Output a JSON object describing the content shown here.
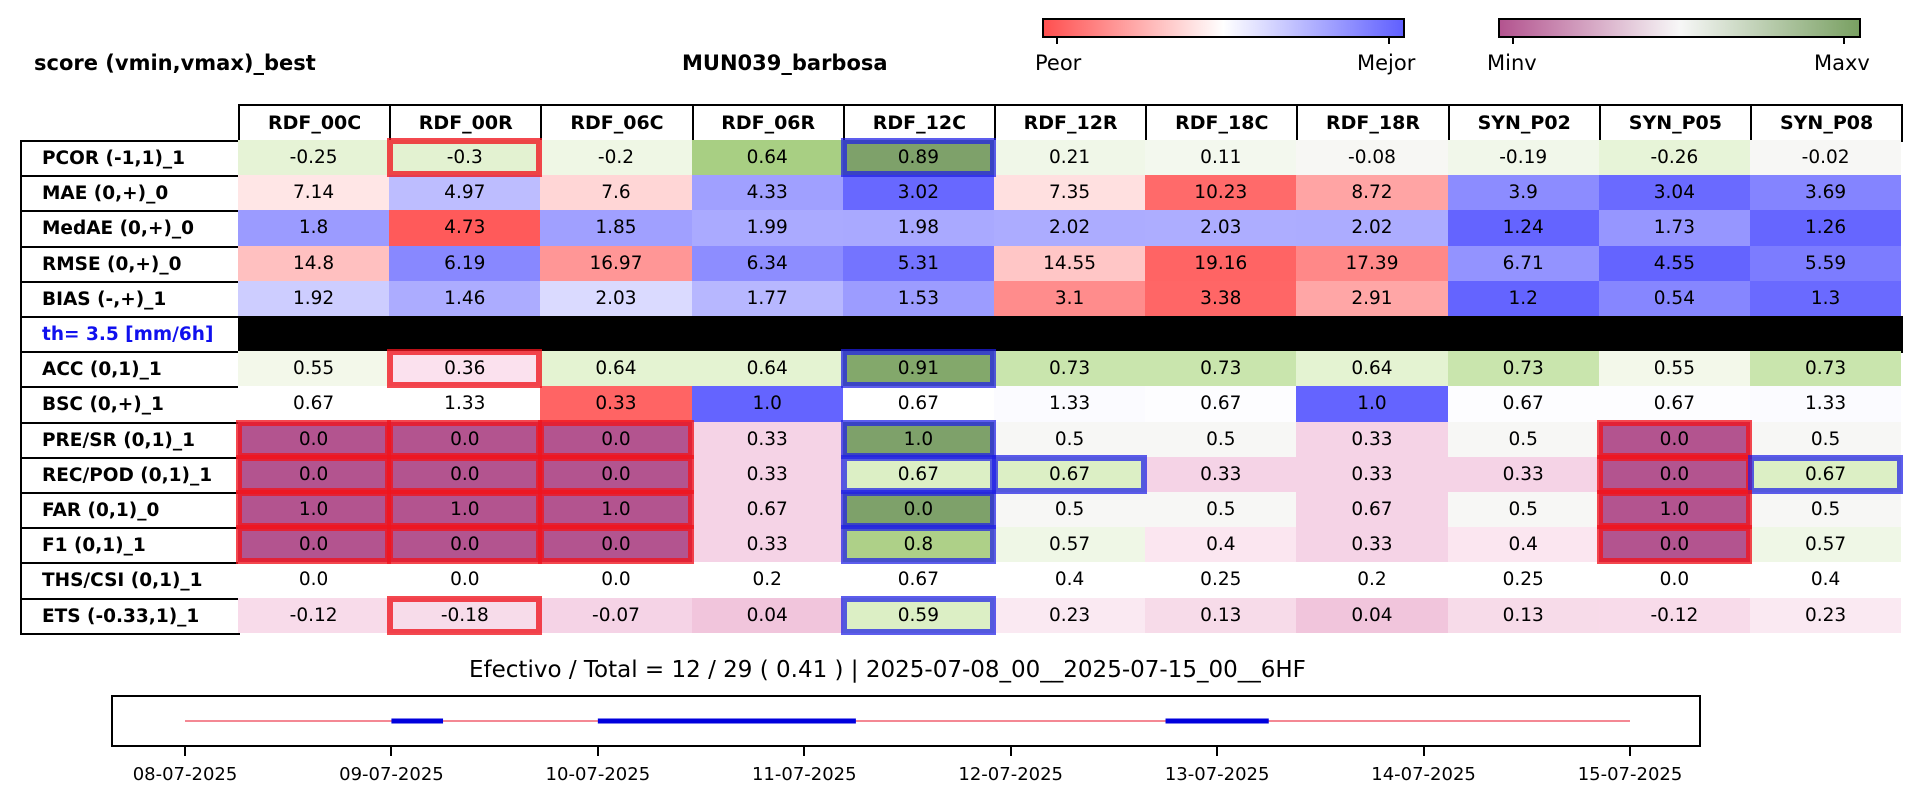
{
  "header": {
    "left_title": "score (vmin,vmax)_best",
    "center_title": "MUN039_barbosa"
  },
  "colorbars": [
    {
      "name": "score-colorbar",
      "low_label": "Peor",
      "high_label": "Mejor",
      "colors": [
        "#ff5050",
        "#ffffff",
        "#6060ff"
      ]
    },
    {
      "name": "value-colorbar",
      "low_label": "Minv",
      "high_label": "Maxv",
      "colors": [
        "#b3548f",
        "#f7f7f7",
        "#79a062"
      ]
    }
  ],
  "chart_data": {
    "type": "table",
    "columns": [
      "RDF_00C",
      "RDF_00R",
      "RDF_06C",
      "RDF_06R",
      "RDF_12C",
      "RDF_12R",
      "RDF_18C",
      "RDF_18R",
      "SYN_P02",
      "SYN_P05",
      "SYN_P08"
    ],
    "rows": [
      {
        "label": "PCOR (-1,1)_1",
        "values": [
          "-0.25",
          "-0.3",
          "-0.2",
          "0.64",
          "0.89",
          "0.21",
          "0.11",
          "-0.08",
          "-0.19",
          "-0.26",
          "-0.02"
        ],
        "fills": [
          "#e6f3d6",
          "#e3f2d1",
          "#eff7e5",
          "#a8cf83",
          "#7ea16a",
          "#f0f7e8",
          "#f3f8ee",
          "#f7f7f4",
          "#f1f7ea",
          "#e7f4d8",
          "#f7f7f5"
        ]
      },
      {
        "label": "MAE (0,+)_0",
        "values": [
          "7.14",
          "4.97",
          "7.6",
          "4.33",
          "3.02",
          "7.35",
          "10.23",
          "8.72",
          "3.9",
          "3.04",
          "3.69"
        ],
        "fills": [
          "#ffe6e6",
          "#bdbdff",
          "#ffd6d6",
          "#a0a0ff",
          "#6868ff",
          "#ffe0e0",
          "#ff6a6a",
          "#ffa4a4",
          "#8c8cff",
          "#6a6aff",
          "#8484ff"
        ]
      },
      {
        "label": "MedAE (0,+)_0",
        "values": [
          "1.8",
          "4.73",
          "1.85",
          "1.99",
          "1.98",
          "2.02",
          "2.03",
          "2.02",
          "1.24",
          "1.73",
          "1.26"
        ],
        "fills": [
          "#9b9bff",
          "#ff5a5a",
          "#a0a0ff",
          "#aaaaff",
          "#a9a9ff",
          "#acacff",
          "#adadff",
          "#acacff",
          "#6464ff",
          "#9696ff",
          "#6666ff"
        ]
      },
      {
        "label": "RMSE (0,+)_0",
        "values": [
          "14.8",
          "6.19",
          "16.97",
          "6.34",
          "5.31",
          "14.55",
          "19.16",
          "17.39",
          "6.71",
          "4.55",
          "5.59"
        ],
        "fills": [
          "#ffc0c0",
          "#8888ff",
          "#ff9696",
          "#8d8dff",
          "#7474ff",
          "#ffc6c6",
          "#ff6464",
          "#ff8888",
          "#9393ff",
          "#6464ff",
          "#7c7cff"
        ]
      },
      {
        "label": "BIAS (-,+)_1",
        "values": [
          "1.92",
          "1.46",
          "2.03",
          "1.77",
          "1.53",
          "3.1",
          "3.38",
          "2.91",
          "1.2",
          "0.54",
          "1.3"
        ],
        "fills": [
          "#cdcdff",
          "#acacff",
          "#dadaff",
          "#b7b7ff",
          "#9c9cff",
          "#ff8c8c",
          "#ff6666",
          "#ffa6a6",
          "#6464ff",
          "#8686ff",
          "#6a6aff"
        ]
      },
      {
        "label": "th= 3.5 [mm/6h]",
        "separator": true
      },
      {
        "label": "ACC (0,1)_1",
        "values": [
          "0.55",
          "0.36",
          "0.64",
          "0.64",
          "0.91",
          "0.73",
          "0.73",
          "0.64",
          "0.73",
          "0.55",
          "0.73"
        ],
        "fills": [
          "#f3f8ea",
          "#fbe1ee",
          "#e4f3d2",
          "#e4f3d2",
          "#83a86b",
          "#c9e5ad",
          "#c9e5ad",
          "#e4f3d2",
          "#c9e5ad",
          "#f3f8ea",
          "#c9e5ad"
        ]
      },
      {
        "label": "BSC (0,+)_1",
        "values": [
          "0.67",
          "1.33",
          "0.33",
          "1.0",
          "0.67",
          "1.33",
          "0.67",
          "1.0",
          "0.67",
          "0.67",
          "1.33"
        ],
        "fills": [
          "#ffffff",
          "#ffffff",
          "#ff6464",
          "#6464ff",
          "#ffffff",
          "#fbfbff",
          "#fdfdff",
          "#6464ff",
          "#fdfdff",
          "#fdfdff",
          "#fbfbff"
        ]
      },
      {
        "label": "PRE/SR (0,1)_1",
        "values": [
          "0.0",
          "0.0",
          "0.0",
          "0.33",
          "1.0",
          "0.5",
          "0.5",
          "0.33",
          "0.5",
          "0.0",
          "0.5"
        ],
        "fills": [
          "#b3548f",
          "#b3548f",
          "#b3548f",
          "#f5d3e6",
          "#7ea16a",
          "#f7f7f5",
          "#f7f7f5",
          "#f5d3e6",
          "#f7f7f5",
          "#b3548f",
          "#f7f7f5"
        ]
      },
      {
        "label": "REC/POD (0,1)_1",
        "values": [
          "0.0",
          "0.0",
          "0.0",
          "0.33",
          "0.67",
          "0.67",
          "0.33",
          "0.33",
          "0.33",
          "0.0",
          "0.67"
        ],
        "fills": [
          "#b3548f",
          "#b3548f",
          "#b3548f",
          "#f5d3e6",
          "#dcefc5",
          "#dcefc5",
          "#f5d3e6",
          "#f5d3e6",
          "#f5d3e6",
          "#b3548f",
          "#dcefc5"
        ]
      },
      {
        "label": "FAR (0,1)_0",
        "values": [
          "1.0",
          "1.0",
          "1.0",
          "0.67",
          "0.0",
          "0.5",
          "0.5",
          "0.67",
          "0.5",
          "1.0",
          "0.5"
        ],
        "fills": [
          "#b3548f",
          "#b3548f",
          "#b3548f",
          "#f5d3e6",
          "#7ea16a",
          "#f7f7f5",
          "#f7f7f5",
          "#f5d3e6",
          "#f7f7f5",
          "#b3548f",
          "#f7f7f5"
        ]
      },
      {
        "label": "F1 (0,1)_1",
        "values": [
          "0.0",
          "0.0",
          "0.0",
          "0.33",
          "0.8",
          "0.57",
          "0.4",
          "0.33",
          "0.4",
          "0.0",
          "0.57"
        ],
        "fills": [
          "#b3548f",
          "#b3548f",
          "#b3548f",
          "#f5d3e6",
          "#aed088",
          "#eff7e6",
          "#fbe6f0",
          "#f5d3e6",
          "#fbe6f0",
          "#b3548f",
          "#eff7e6"
        ]
      },
      {
        "label": "THS/CSI (0,1)_1",
        "values": [
          "0.0",
          "0.0",
          "0.0",
          "0.2",
          "0.67",
          "0.4",
          "0.25",
          "0.2",
          "0.25",
          "0.0",
          "0.4"
        ],
        "fills": [
          "#ffffff",
          "#ffffff",
          "#ffffff",
          "#ffffff",
          "#ffffff",
          "#ffffff",
          "#ffffff",
          "#ffffff",
          "#ffffff",
          "#ffffff",
          "#ffffff"
        ]
      },
      {
        "label": "ETS (-0.33,1)_1",
        "values": [
          "-0.12",
          "-0.18",
          "-0.07",
          "0.04",
          "0.59",
          "0.23",
          "0.13",
          "0.04",
          "0.13",
          "-0.12",
          "0.23"
        ],
        "fills": [
          "#f8dbea",
          "#f7dcea",
          "#f5d3e6",
          "#f1c5dc",
          "#dcefc5",
          "#fae9f2",
          "#f7dbe9",
          "#f1c5dc",
          "#f7dbe9",
          "#f8dbea",
          "#fae9f2"
        ]
      }
    ],
    "highlights": [
      {
        "row": 0,
        "col": 1,
        "color": "red"
      },
      {
        "row": 0,
        "col": 4,
        "color": "blue"
      },
      {
        "row": 6,
        "col": 1,
        "color": "red"
      },
      {
        "row": 6,
        "col": 4,
        "color": "blue"
      },
      {
        "row": 8,
        "col": 0,
        "color": "red"
      },
      {
        "row": 8,
        "col": 1,
        "color": "red"
      },
      {
        "row": 8,
        "col": 2,
        "color": "red"
      },
      {
        "row": 8,
        "col": 4,
        "color": "blue"
      },
      {
        "row": 8,
        "col": 9,
        "color": "red"
      },
      {
        "row": 9,
        "col": 0,
        "color": "red"
      },
      {
        "row": 9,
        "col": 1,
        "color": "red"
      },
      {
        "row": 9,
        "col": 2,
        "color": "red"
      },
      {
        "row": 9,
        "col": 4,
        "color": "blue"
      },
      {
        "row": 9,
        "col": 5,
        "color": "blue"
      },
      {
        "row": 9,
        "col": 9,
        "color": "red"
      },
      {
        "row": 9,
        "col": 10,
        "color": "blue"
      },
      {
        "row": 10,
        "col": 0,
        "color": "red"
      },
      {
        "row": 10,
        "col": 1,
        "color": "red"
      },
      {
        "row": 10,
        "col": 2,
        "color": "red"
      },
      {
        "row": 10,
        "col": 4,
        "color": "blue"
      },
      {
        "row": 10,
        "col": 9,
        "color": "red"
      },
      {
        "row": 11,
        "col": 0,
        "color": "red"
      },
      {
        "row": 11,
        "col": 1,
        "color": "red"
      },
      {
        "row": 11,
        "col": 2,
        "color": "red"
      },
      {
        "row": 11,
        "col": 4,
        "color": "blue"
      },
      {
        "row": 11,
        "col": 9,
        "color": "red"
      },
      {
        "row": 13,
        "col": 1,
        "color": "red"
      },
      {
        "row": 13,
        "col": 4,
        "color": "blue"
      }
    ]
  },
  "footer": {
    "summary": "Efectivo / Total  =  12 / 29 ( 0.41 ) | 2025-07-08_00__2025-07-15_00__6HF",
    "timeline": {
      "ticks": [
        "08-07-2025",
        "09-07-2025",
        "10-07-2025",
        "11-07-2025",
        "12-07-2025",
        "13-07-2025",
        "14-07-2025",
        "15-07-2025"
      ],
      "range_days": [
        0,
        7
      ],
      "effective_segments": [
        [
          1.0,
          1.25
        ],
        [
          2.0,
          3.25
        ],
        [
          4.75,
          5.25
        ]
      ],
      "segment_color": "#0000dd",
      "baseline_color": "#f06070"
    }
  }
}
